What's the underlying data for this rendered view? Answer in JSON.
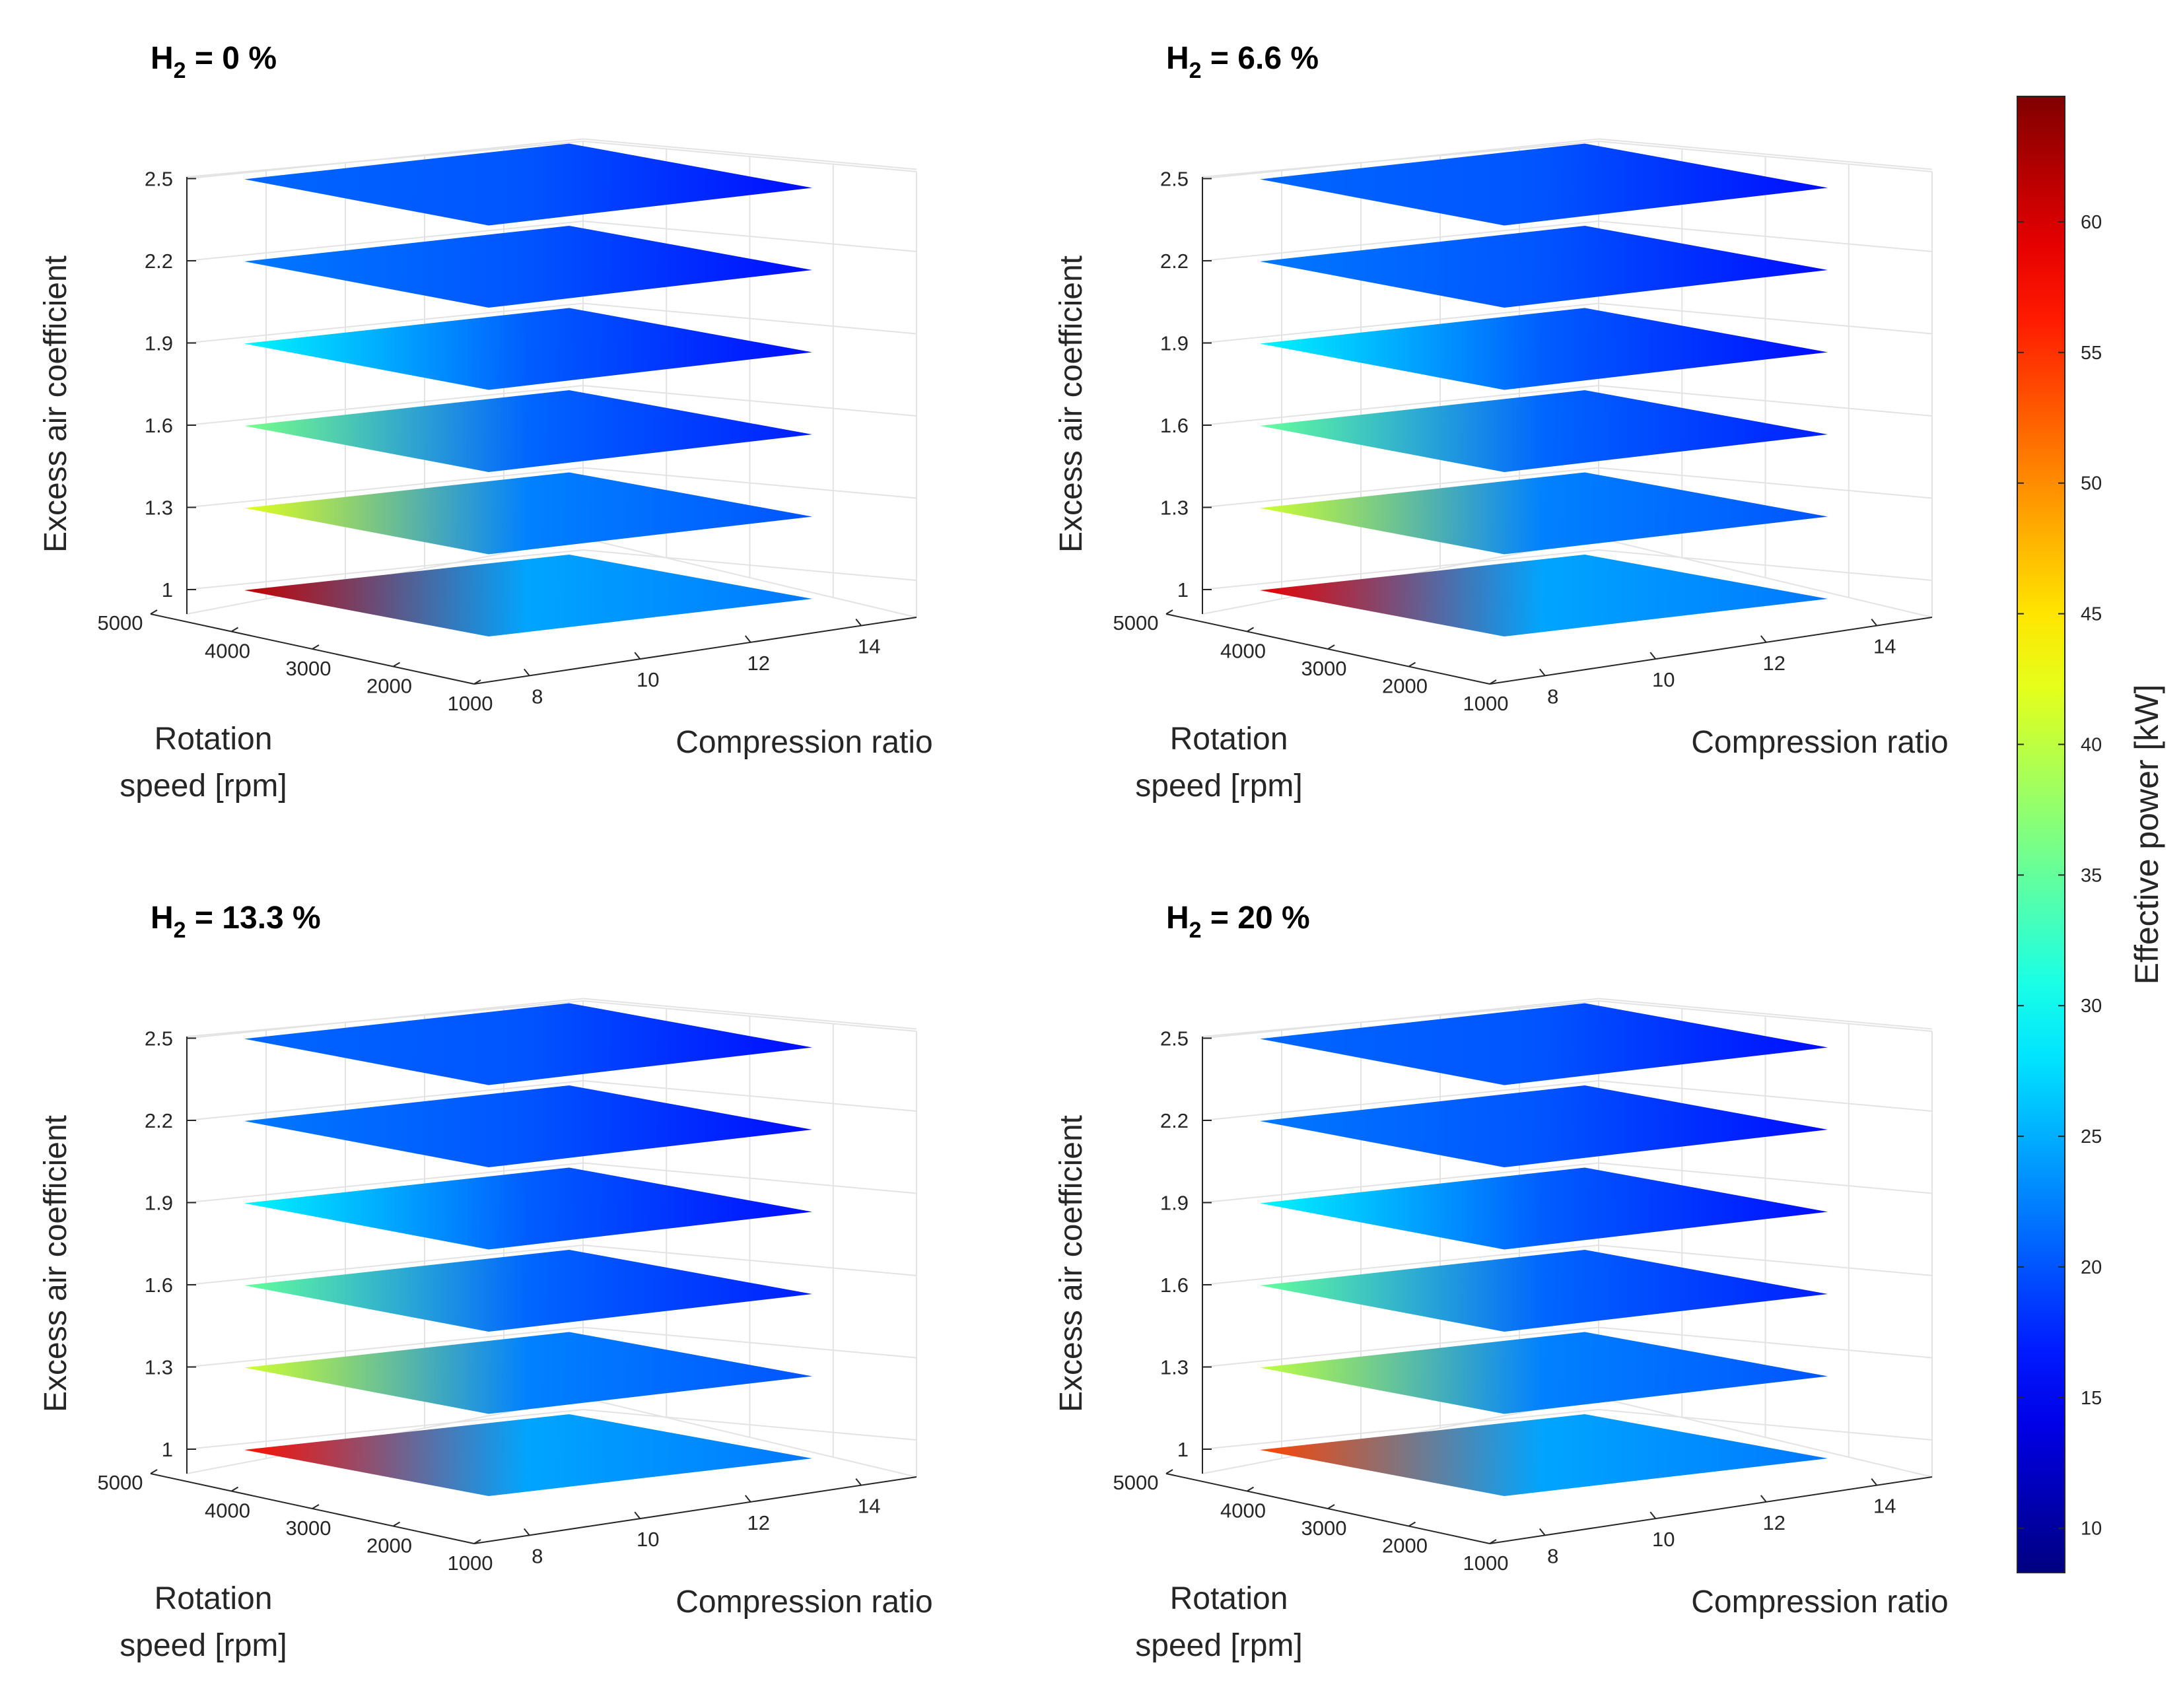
{
  "chart_data": [
    {
      "type": "surface",
      "panel": "top-left",
      "title": {
        "prefix": "H",
        "subscript": "2",
        "suffix": " = 0 %"
      },
      "xlabel": [
        "Rotation",
        "speed [rpm]"
      ],
      "ylabel": "Compression ratio",
      "zlabel": "Excess air coefficient",
      "xticks": [
        5000,
        4000,
        3000,
        2000,
        1000
      ],
      "yticks": [
        8,
        10,
        12,
        14
      ],
      "zticks": [
        "2.5",
        "2.2",
        "1.9",
        "1.6",
        "1.3",
        "1"
      ],
      "layers": [
        {
          "lambda": 1.0,
          "power_kw": {
            "low_speed_low_cr": 24,
            "high_speed_low_cr": 61,
            "high_speed_high_cr": 25,
            "low_speed_high_cr": 22
          }
        },
        {
          "lambda": 1.3,
          "power_kw": {
            "low_speed_low_cr": 21,
            "high_speed_low_cr": 42,
            "high_speed_high_cr": 24,
            "low_speed_high_cr": 20
          }
        },
        {
          "lambda": 1.6,
          "power_kw": {
            "low_speed_low_cr": 20,
            "high_speed_low_cr": 36,
            "high_speed_high_cr": 22,
            "low_speed_high_cr": 17
          }
        },
        {
          "lambda": 1.9,
          "power_kw": {
            "low_speed_low_cr": 20,
            "high_speed_low_cr": 29,
            "high_speed_high_cr": 21,
            "low_speed_high_cr": 16
          }
        },
        {
          "lambda": 2.2,
          "power_kw": {
            "low_speed_low_cr": 20,
            "high_speed_low_cr": 22,
            "high_speed_high_cr": 20,
            "low_speed_high_cr": 16
          }
        },
        {
          "lambda": 2.5,
          "power_kw": {
            "low_speed_low_cr": 20,
            "high_speed_low_cr": 21,
            "high_speed_high_cr": 20,
            "low_speed_high_cr": 16
          }
        }
      ]
    },
    {
      "type": "surface",
      "panel": "top-right",
      "title": {
        "prefix": "H",
        "subscript": "2",
        "suffix": " = 6.6 %"
      },
      "xlabel": [
        "Rotation",
        "speed [rpm]"
      ],
      "ylabel": "Compression ratio",
      "zlabel": "Excess air coefficient",
      "xticks": [
        5000,
        4000,
        3000,
        2000,
        1000
      ],
      "yticks": [
        8,
        10,
        12,
        14
      ],
      "zticks": [
        "2.5",
        "2.2",
        "1.9",
        "1.6",
        "1.3",
        "1"
      ],
      "layers": [
        {
          "lambda": 1.0,
          "power_kw": {
            "low_speed_low_cr": 24,
            "high_speed_low_cr": 59,
            "high_speed_high_cr": 25,
            "low_speed_high_cr": 22
          }
        },
        {
          "lambda": 1.3,
          "power_kw": {
            "low_speed_low_cr": 21,
            "high_speed_low_cr": 41,
            "high_speed_high_cr": 24,
            "low_speed_high_cr": 20
          }
        },
        {
          "lambda": 1.6,
          "power_kw": {
            "low_speed_low_cr": 20,
            "high_speed_low_cr": 35,
            "high_speed_high_cr": 22,
            "low_speed_high_cr": 17
          }
        },
        {
          "lambda": 1.9,
          "power_kw": {
            "low_speed_low_cr": 20,
            "high_speed_low_cr": 29,
            "high_speed_high_cr": 21,
            "low_speed_high_cr": 16
          }
        },
        {
          "lambda": 2.2,
          "power_kw": {
            "low_speed_low_cr": 20,
            "high_speed_low_cr": 22,
            "high_speed_high_cr": 20,
            "low_speed_high_cr": 16
          }
        },
        {
          "lambda": 2.5,
          "power_kw": {
            "low_speed_low_cr": 20,
            "high_speed_low_cr": 21,
            "high_speed_high_cr": 20,
            "low_speed_high_cr": 16
          }
        }
      ]
    },
    {
      "type": "surface",
      "panel": "bottom-left",
      "title": {
        "prefix": "H",
        "subscript": "2",
        "suffix": " = 13.3 %"
      },
      "xlabel": [
        "Rotation",
        "speed [rpm]"
      ],
      "ylabel": "Compression ratio",
      "zlabel": "Excess air coefficient",
      "xticks": [
        5000,
        4000,
        3000,
        2000,
        1000
      ],
      "yticks": [
        8,
        10,
        12,
        14
      ],
      "zticks": [
        "2.5",
        "2.2",
        "1.9",
        "1.6",
        "1.3",
        "1"
      ],
      "layers": [
        {
          "lambda": 1.0,
          "power_kw": {
            "low_speed_low_cr": 24,
            "high_speed_low_cr": 57,
            "high_speed_high_cr": 25,
            "low_speed_high_cr": 22
          }
        },
        {
          "lambda": 1.3,
          "power_kw": {
            "low_speed_low_cr": 21,
            "high_speed_low_cr": 41,
            "high_speed_high_cr": 24,
            "low_speed_high_cr": 20
          }
        },
        {
          "lambda": 1.6,
          "power_kw": {
            "low_speed_low_cr": 20,
            "high_speed_low_cr": 35,
            "high_speed_high_cr": 22,
            "low_speed_high_cr": 17
          }
        },
        {
          "lambda": 1.9,
          "power_kw": {
            "low_speed_low_cr": 20,
            "high_speed_low_cr": 29,
            "high_speed_high_cr": 21,
            "low_speed_high_cr": 16
          }
        },
        {
          "lambda": 2.2,
          "power_kw": {
            "low_speed_low_cr": 20,
            "high_speed_low_cr": 22,
            "high_speed_high_cr": 20,
            "low_speed_high_cr": 16
          }
        },
        {
          "lambda": 2.5,
          "power_kw": {
            "low_speed_low_cr": 20,
            "high_speed_low_cr": 21,
            "high_speed_high_cr": 20,
            "low_speed_high_cr": 16
          }
        }
      ]
    },
    {
      "type": "surface",
      "panel": "bottom-right",
      "title": {
        "prefix": "H",
        "subscript": "2",
        "suffix": " = 20 %"
      },
      "xlabel": [
        "Rotation",
        "speed [rpm]"
      ],
      "ylabel": "Compression ratio",
      "zlabel": "Excess air coefficient",
      "xticks": [
        5000,
        4000,
        3000,
        2000,
        1000
      ],
      "yticks": [
        8,
        10,
        12,
        14
      ],
      "zticks": [
        "2.5",
        "2.2",
        "1.9",
        "1.6",
        "1.3",
        "1"
      ],
      "layers": [
        {
          "lambda": 1.0,
          "power_kw": {
            "low_speed_low_cr": 24,
            "high_speed_low_cr": 54,
            "high_speed_high_cr": 25,
            "low_speed_high_cr": 22
          }
        },
        {
          "lambda": 1.3,
          "power_kw": {
            "low_speed_low_cr": 21,
            "high_speed_low_cr": 40,
            "high_speed_high_cr": 24,
            "low_speed_high_cr": 20
          }
        },
        {
          "lambda": 1.6,
          "power_kw": {
            "low_speed_low_cr": 20,
            "high_speed_low_cr": 35,
            "high_speed_high_cr": 22,
            "low_speed_high_cr": 17
          }
        },
        {
          "lambda": 1.9,
          "power_kw": {
            "low_speed_low_cr": 20,
            "high_speed_low_cr": 29,
            "high_speed_high_cr": 21,
            "low_speed_high_cr": 16
          }
        },
        {
          "lambda": 2.2,
          "power_kw": {
            "low_speed_low_cr": 20,
            "high_speed_low_cr": 22,
            "high_speed_high_cr": 20,
            "low_speed_high_cr": 16
          }
        },
        {
          "lambda": 2.5,
          "power_kw": {
            "low_speed_low_cr": 20,
            "high_speed_low_cr": 21,
            "high_speed_high_cr": 20,
            "low_speed_high_cr": 16
          }
        }
      ]
    }
  ],
  "colorbar": {
    "label": "Effective power [kW]",
    "range": [
      8.3,
      64.8
    ],
    "ticks": [
      10,
      15,
      20,
      25,
      30,
      35,
      40,
      45,
      50,
      55,
      60
    ],
    "colormap": "jet"
  }
}
